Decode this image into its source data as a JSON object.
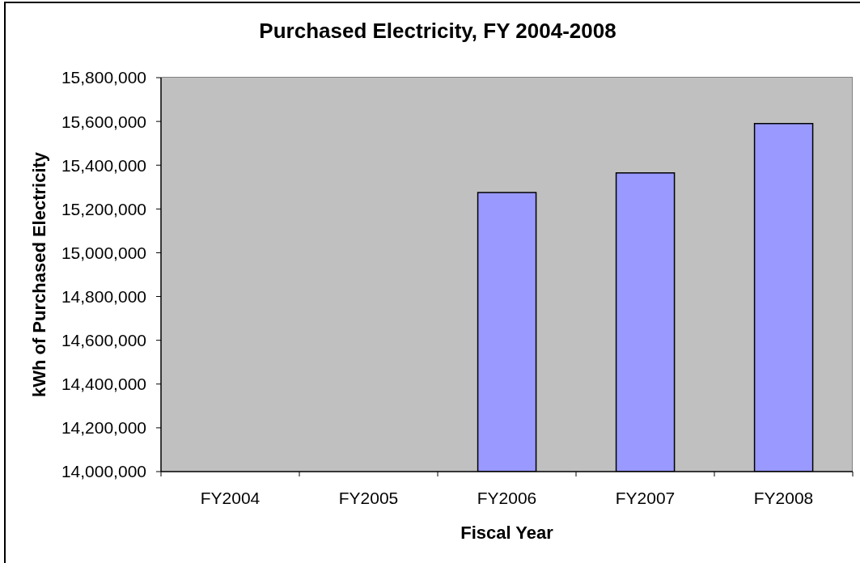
{
  "chart_data": {
    "type": "bar",
    "title": "Purchased Electricity, FY 2004-2008",
    "xlabel": "Fiscal Year",
    "ylabel": "kWh of Purchased Electricity",
    "categories": [
      "FY2004",
      "FY2005",
      "FY2006",
      "FY2007",
      "FY2008"
    ],
    "values": [
      null,
      null,
      15275000,
      15365000,
      15590000
    ],
    "color": "#9999ff",
    "ylim": [
      14000000,
      15800000
    ],
    "yticks": [
      {
        "value": 14000000,
        "label": "14,000,000"
      },
      {
        "value": 14200000,
        "label": "14,200,000"
      },
      {
        "value": 14400000,
        "label": "14,400,000"
      },
      {
        "value": 14600000,
        "label": "14,600,000"
      },
      {
        "value": 14800000,
        "label": "14,800,000"
      },
      {
        "value": 15000000,
        "label": "15,000,000"
      },
      {
        "value": 15200000,
        "label": "15,200,000"
      },
      {
        "value": 15400000,
        "label": "15,400,000"
      },
      {
        "value": 15600000,
        "label": "15,600,000"
      },
      {
        "value": 15800000,
        "label": "15,800,000"
      }
    ]
  }
}
